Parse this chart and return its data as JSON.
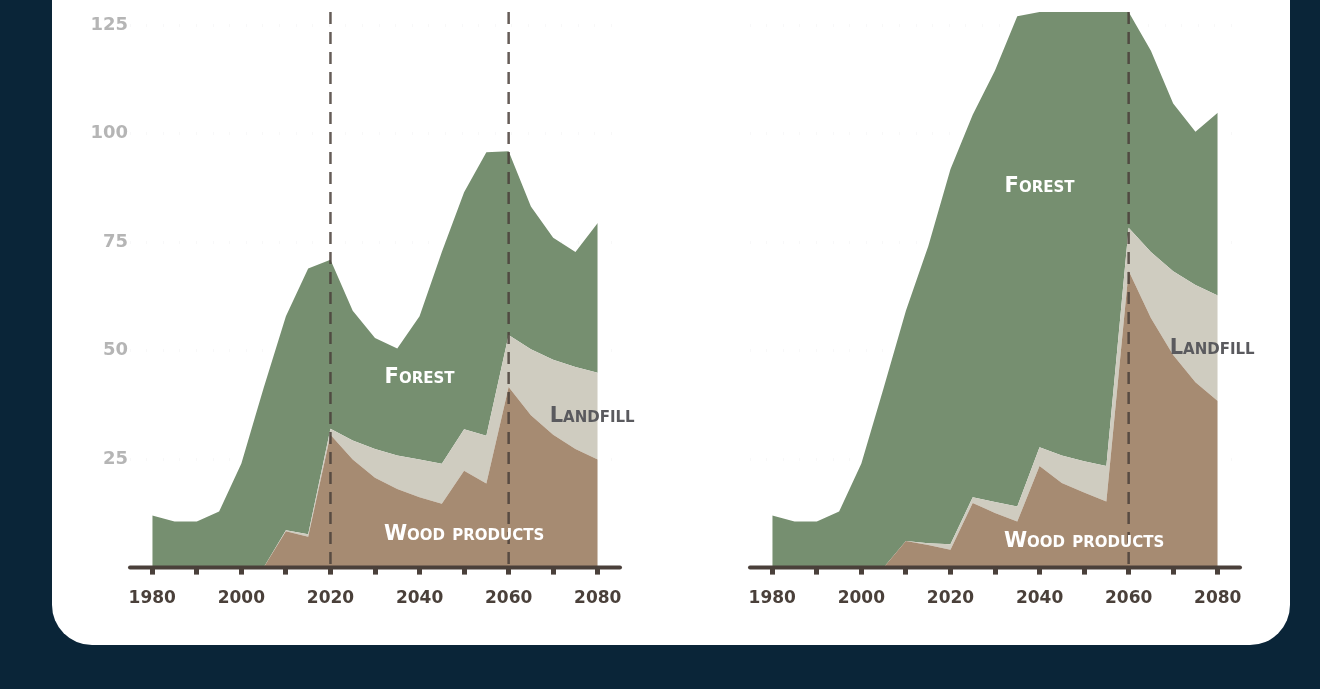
{
  "chart_data": [
    {
      "type": "area",
      "stacked": true,
      "x": [
        1980,
        1985,
        1990,
        1995,
        2000,
        2005,
        2010,
        2015,
        2020,
        2025,
        2030,
        2035,
        2040,
        2045,
        2050,
        2055,
        2060,
        2065,
        2070,
        2075,
        2080
      ],
      "xlim": [
        1975,
        2085
      ],
      "xticks": [
        1980,
        {
          "value": 1990,
          "label": null
        },
        2000,
        {
          "value": 2010,
          "label": null
        },
        2020,
        {
          "value": 2030,
          "label": null
        },
        2040,
        {
          "value": 2050,
          "label": null
        },
        2060,
        {
          "value": 2070,
          "label": null
        },
        2080
      ],
      "ylim": [
        0,
        128
      ],
      "yticks": [
        25,
        50,
        75,
        100,
        125
      ],
      "grid": "y",
      "legend": false,
      "series": [
        {
          "name": "Wood products",
          "color": "#a68b72",
          "values": [
            0,
            0,
            0,
            0,
            0,
            0,
            8.4,
            7.1,
            30.6,
            24.9,
            20.7,
            18.1,
            16.2,
            14.7,
            22.3,
            19.4,
            41.6,
            35.1,
            30.6,
            27.3,
            24.9
          ]
        },
        {
          "name": "Landfill",
          "color": "#cfccc0",
          "values": [
            0,
            0,
            0,
            0,
            0,
            0,
            0.2,
            0.6,
            1.4,
            4.4,
            6.6,
            7.7,
            8.7,
            9.2,
            9.6,
            11,
            12,
            15.2,
            17.3,
            18.9,
            20
          ]
        },
        {
          "name": "Forest",
          "color": "#768f70",
          "values": [
            12,
            10.6,
            10.6,
            12.9,
            24,
            41.4,
            49.3,
            61.2,
            38.9,
            29.9,
            25.6,
            24.7,
            33,
            48.8,
            54.6,
            65.3,
            42.3,
            32.9,
            28.1,
            26.5,
            34.5
          ]
        }
      ],
      "ref_lines": [
        {
          "axis": "x",
          "value": 2020,
          "line_style": "dashed",
          "color": "#4a403a"
        },
        {
          "axis": "x",
          "value": 2060,
          "line_style": "dashed",
          "color": "#4a403a"
        }
      ]
    },
    {
      "type": "area",
      "stacked": true,
      "x": [
        1980,
        1985,
        1990,
        1995,
        2000,
        2005,
        2010,
        2015,
        2020,
        2025,
        2030,
        2035,
        2040,
        2045,
        2050,
        2055,
        2060,
        2065,
        2070,
        2075,
        2080
      ],
      "xlim": [
        1975,
        2085
      ],
      "xticks": [
        1980,
        {
          "value": 1990,
          "label": null
        },
        2000,
        {
          "value": 2010,
          "label": null
        },
        2020,
        {
          "value": 2030,
          "label": null
        },
        2040,
        {
          "value": 2050,
          "label": null
        },
        2060,
        {
          "value": 2070,
          "label": null
        },
        2080
      ],
      "ylim": [
        0,
        128
      ],
      "yticks": [
        25,
        50,
        75,
        100,
        125
      ],
      "grid": "y",
      "legend": false,
      "tick_labels": "x",
      "series": [
        {
          "name": "Wood products",
          "color": "#a68b72",
          "values": [
            0,
            0,
            0,
            0,
            0,
            0,
            6.1,
            5.2,
            4.1,
            14.9,
            12.6,
            10.6,
            23.4,
            19.5,
            17.3,
            15.2,
            68.4,
            57.5,
            49,
            42.7,
            38.4
          ]
        },
        {
          "name": "Landfill",
          "color": "#cfccc0",
          "values": [
            0,
            0,
            0,
            0,
            0,
            0,
            0,
            0.4,
            1.3,
            1.3,
            2.5,
            3.5,
            4.3,
            6.3,
            7.2,
            8.2,
            9.9,
            15.2,
            19.3,
            22.4,
            24.3
          ]
        },
        {
          "name": "Forest",
          "color": "#768f70",
          "values": [
            12,
            10.6,
            10.6,
            12.9,
            24,
            41.4,
            53.1,
            68.4,
            86.4,
            88.1,
            99.4,
            112.9,
            100.3,
            102.2,
            103.5,
            104.6,
            49.7,
            46.4,
            38.6,
            35.3,
            42.1
          ]
        }
      ],
      "ref_lines": [
        {
          "axis": "x",
          "value": 2060,
          "line_style": "dashed",
          "color": "#4a403a"
        }
      ]
    }
  ]
}
